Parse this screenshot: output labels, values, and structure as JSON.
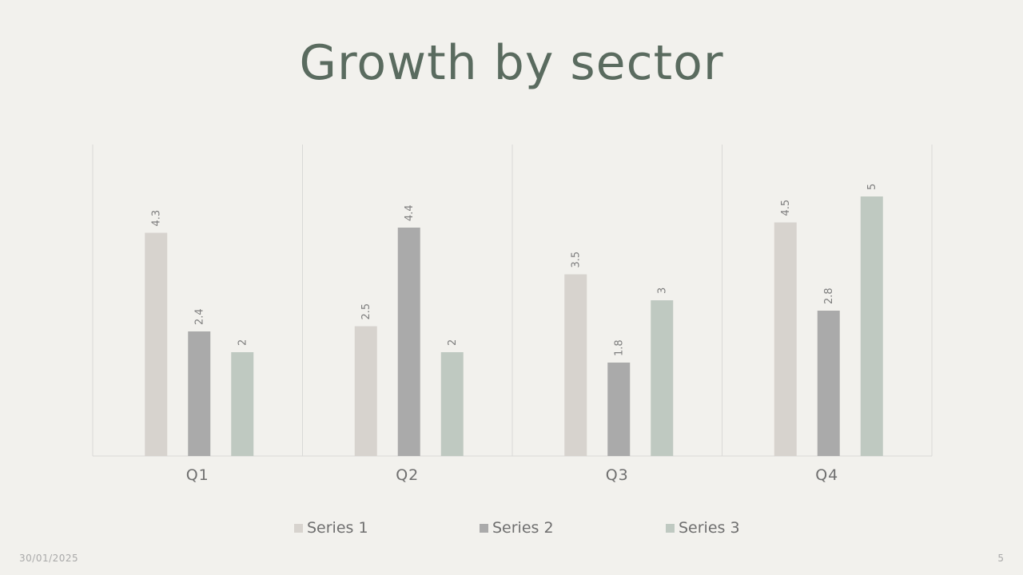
{
  "slide": {
    "title": "Growth by sector",
    "date": "30/01/2025",
    "page_number": "5"
  },
  "colors": {
    "background": "#f2f1ed",
    "title": "#5a6b5f",
    "series1": "#d7d3ce",
    "series2": "#aaaaaa",
    "series3": "#bfc9c1",
    "gridline": "#d9d9d6",
    "axis_text": "#6f6f6f"
  },
  "chart_data": {
    "type": "bar",
    "title": "Growth by sector",
    "categories": [
      "Q1",
      "Q2",
      "Q3",
      "Q4"
    ],
    "series": [
      {
        "name": "Series 1",
        "values": [
          4.3,
          2.5,
          3.5,
          4.5
        ]
      },
      {
        "name": "Series 2",
        "values": [
          2.4,
          4.4,
          1.8,
          2.8
        ]
      },
      {
        "name": "Series 3",
        "values": [
          2,
          2,
          3,
          5
        ]
      }
    ],
    "ylim": [
      0,
      6
    ],
    "data_labels": true,
    "data_label_orientation": "vertical",
    "legend_position": "bottom",
    "grid": "vertical category separators"
  }
}
